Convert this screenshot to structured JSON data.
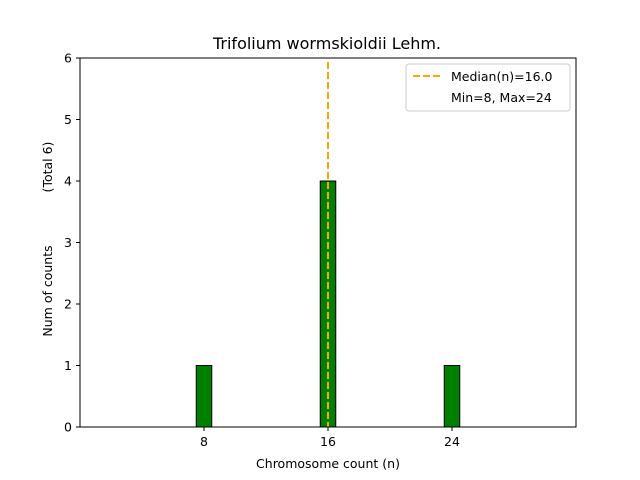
{
  "chart_data": {
    "type": "bar",
    "title": "Trifolium wormskioldii Lehm.",
    "xlabel": "Chromosome count (n)",
    "ylabel": "Num of counts",
    "ylabel_total": "(Total 6)",
    "bars": [
      {
        "x": 8,
        "value": 1
      },
      {
        "x": 16,
        "value": 4
      },
      {
        "x": 24,
        "value": 1
      }
    ],
    "bar_width": 1,
    "xlim": [
      0,
      32
    ],
    "ylim": [
      0,
      6
    ],
    "baseline_xlim": [
      1.3,
      27.7
    ],
    "xticks": [
      8,
      16,
      24
    ],
    "yticks": [
      0,
      1,
      2,
      3,
      4,
      5,
      6
    ],
    "median": 16.0,
    "legend": {
      "position": "top-right",
      "median_label": "Median(n)=16.0",
      "range_label": "Min=8, Max=24"
    },
    "grid": false,
    "colors": {
      "bar_fill": "#008000",
      "bar_edge": "#000000",
      "median_line": "#ffa500",
      "axes": "#000000"
    }
  }
}
